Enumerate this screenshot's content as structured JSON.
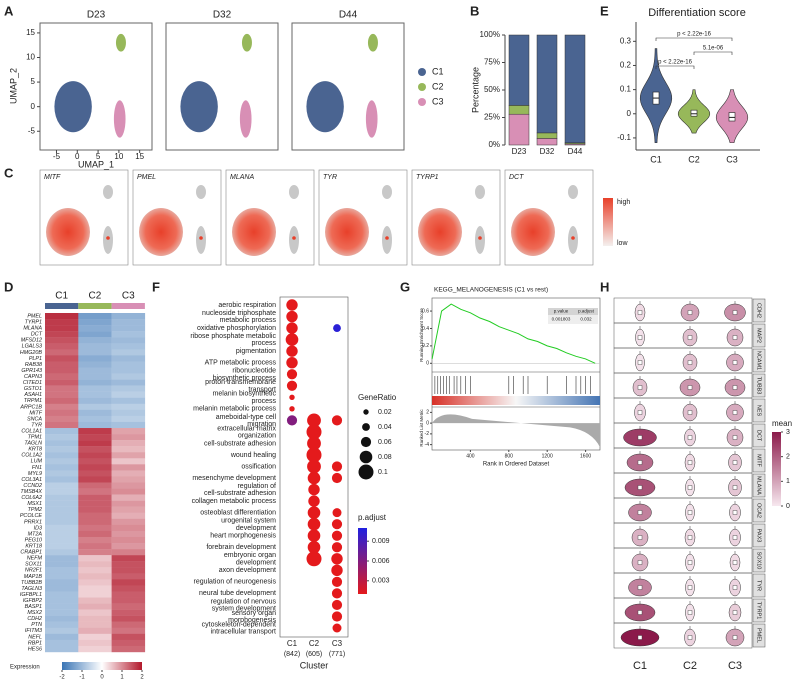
{
  "chart_data": [
    {
      "type": "umap",
      "label": "A",
      "facets": [
        "D23",
        "D32",
        "D44"
      ],
      "xlabel": "UMAP_1",
      "ylabel": "UMAP_2",
      "xlim": [
        -8,
        17
      ],
      "ylim": [
        -8,
        16
      ],
      "xticks": [
        -5,
        0,
        5,
        10,
        15
      ],
      "yticks": [
        -5,
        0,
        5,
        10,
        15
      ],
      "series": [
        {
          "name": "C1",
          "color": "#4a6491",
          "x": [
            -1
          ],
          "y": [
            0
          ]
        },
        {
          "name": "C2",
          "color": "#97b85a",
          "x": [
            10.5
          ],
          "y": [
            13
          ]
        },
        {
          "name": "C3",
          "color": "#d88fb5",
          "x": [
            10.2
          ],
          "y": [
            -2.5
          ]
        }
      ]
    },
    {
      "type": "stacked_bar",
      "label": "B",
      "categories": [
        "D23",
        "D32",
        "D44"
      ],
      "ylabel": "Percentage",
      "ylim": [
        0,
        100
      ],
      "yticks": [
        {
          "value": 0,
          "label": "0%"
        },
        {
          "value": 25,
          "label": "25%"
        },
        {
          "value": 50,
          "label": "50%"
        },
        {
          "value": 75,
          "label": "75%"
        },
        {
          "value": 100,
          "label": "100%"
        }
      ],
      "series": [
        {
          "name": "C3",
          "color": "#d88fb5",
          "values": [
            28,
            6,
            1
          ]
        },
        {
          "name": "C2",
          "color": "#97b85a",
          "values": [
            8,
            5,
            1
          ]
        },
        {
          "name": "C1",
          "color": "#4a6491",
          "values": [
            64,
            89,
            98
          ]
        }
      ]
    },
    {
      "type": "violin",
      "label": "E",
      "title": "Differentiation score",
      "categories": [
        "C1",
        "C2",
        "C3"
      ],
      "colors": [
        "#4a6491",
        "#97b85a",
        "#d88fb5"
      ],
      "ylim": [
        -0.15,
        0.38
      ],
      "yticks": [
        -0.1,
        0.0,
        0.1,
        0.2,
        0.3
      ],
      "min": [
        -0.12,
        -0.08,
        -0.12
      ],
      "q1": [
        0.04,
        -0.01,
        -0.03
      ],
      "median": [
        0.065,
        0.0,
        -0.015
      ],
      "q3": [
        0.09,
        0.015,
        0.005
      ],
      "max": [
        0.27,
        0.1,
        0.1
      ],
      "annotations": [
        "p < 2.22e-16",
        "5.1e-06",
        "p < 2.22e-16"
      ]
    },
    {
      "type": "feature_umap",
      "label": "C",
      "genes": [
        "MITF",
        "PMEL",
        "MLANA",
        "TYR",
        "TYRP1",
        "DCT"
      ],
      "legend": [
        "high",
        "low"
      ]
    },
    {
      "type": "heatmap",
      "label": "D",
      "clusters": [
        "C1",
        "C2",
        "C3"
      ],
      "cluster_colors": [
        "#4a6491",
        "#97b85a",
        "#d88fb5"
      ],
      "legend_title": "Expression",
      "ticks": [
        -2,
        -1,
        0,
        1,
        2
      ],
      "genes": [
        "PMEL",
        "TYRP1",
        "MLANA",
        "DCT",
        "MFSD12",
        "LGALS3",
        "HMG20B",
        "PLP1",
        "RAB38",
        "GPR143",
        "CAPN3",
        "CITED1",
        "GSTO1",
        "ASAH1",
        "TRPM1",
        "ARPC1B",
        "MITF",
        "SNCA",
        "TYR",
        "COL1A1",
        "TPM1",
        "TAGLN",
        "KRT8",
        "COL1A2",
        "LUM",
        "FN1",
        "MYL9",
        "COL3A1",
        "CCND2",
        "TMSB4X",
        "COL6A2",
        "MSX1",
        "TPM2",
        "PCOLCE",
        "PRRX1",
        "ID3",
        "MT2A",
        "PEG10",
        "KRT18",
        "CRABP1",
        "NEFM",
        "SOX11",
        "NR2F1",
        "MAP1B",
        "TUBB2B",
        "TAGLN3",
        "IGFBPL1",
        "IGFBP2",
        "BASP1",
        "MSX2",
        "CDH2",
        "PTN",
        "IFITM3",
        "NEFL",
        "RBP1",
        "HES6"
      ],
      "values": [
        [
          1.8,
          -1.4,
          -1.1
        ],
        [
          1.7,
          -1.3,
          -1.0
        ],
        [
          1.7,
          -1.2,
          -1.0
        ],
        [
          1.6,
          -1.3,
          -0.9
        ],
        [
          1.5,
          -1.1,
          -1.0
        ],
        [
          1.4,
          -1.0,
          -0.9
        ],
        [
          1.3,
          -1.0,
          -0.8
        ],
        [
          1.5,
          -1.2,
          -1.0
        ],
        [
          1.4,
          -1.1,
          -0.9
        ],
        [
          1.4,
          -1.0,
          -0.9
        ],
        [
          1.3,
          -1.0,
          -0.8
        ],
        [
          1.4,
          -1.1,
          -1.0
        ],
        [
          1.2,
          -0.9,
          -0.8
        ],
        [
          1.2,
          -0.9,
          -0.7
        ],
        [
          1.3,
          -1.0,
          -0.9
        ],
        [
          1.1,
          -0.8,
          -0.7
        ],
        [
          1.2,
          -1.0,
          -0.8
        ],
        [
          1.1,
          -0.9,
          -0.7
        ],
        [
          1.2,
          -1.0,
          -0.9
        ],
        [
          -0.9,
          1.7,
          0.8
        ],
        [
          -0.8,
          1.6,
          0.9
        ],
        [
          -0.9,
          1.7,
          0.7
        ],
        [
          -0.8,
          1.5,
          0.6
        ],
        [
          -0.9,
          1.6,
          0.8
        ],
        [
          -0.8,
          1.5,
          0.5
        ],
        [
          -0.9,
          1.6,
          0.9
        ],
        [
          -0.8,
          1.5,
          0.7
        ],
        [
          -0.9,
          1.6,
          0.8
        ],
        [
          -0.7,
          1.3,
          0.9
        ],
        [
          -0.7,
          1.2,
          1.0
        ],
        [
          -0.8,
          1.4,
          0.7
        ],
        [
          -0.8,
          1.4,
          0.9
        ],
        [
          -0.8,
          1.4,
          0.8
        ],
        [
          -0.8,
          1.3,
          0.7
        ],
        [
          -0.8,
          1.3,
          0.9
        ],
        [
          -0.7,
          1.2,
          1.0
        ],
        [
          -0.7,
          1.3,
          0.9
        ],
        [
          -0.7,
          1.1,
          1.0
        ],
        [
          -0.7,
          1.2,
          0.9
        ],
        [
          -0.8,
          1.1,
          1.1
        ],
        [
          -1.0,
          0.5,
          1.6
        ],
        [
          -1.0,
          0.6,
          1.5
        ],
        [
          -0.9,
          0.5,
          1.5
        ],
        [
          -0.9,
          0.6,
          1.4
        ],
        [
          -1.0,
          0.5,
          1.6
        ],
        [
          -1.0,
          0.4,
          1.5
        ],
        [
          -0.9,
          0.4,
          1.4
        ],
        [
          -0.9,
          0.6,
          1.4
        ],
        [
          -0.9,
          0.7,
          1.3
        ],
        [
          -0.9,
          0.5,
          1.4
        ],
        [
          -1.0,
          0.6,
          1.5
        ],
        [
          -0.9,
          0.6,
          1.3
        ],
        [
          -0.8,
          0.7,
          1.2
        ],
        [
          -1.0,
          0.4,
          1.5
        ],
        [
          -0.9,
          0.5,
          1.4
        ],
        [
          -0.9,
          0.4,
          1.3
        ]
      ]
    },
    {
      "type": "dot",
      "label": "F",
      "xlabel": "Cluster",
      "categories": [
        "C1",
        "C2",
        "C3"
      ],
      "counts": [
        "(842)",
        "(605)",
        "(771)"
      ],
      "terms": [
        "aerobic respiration",
        "nucleoside triphosphate metabolic process",
        "oxidative phosphorylation",
        "ribose phosphate metabolic process",
        "pigmentation",
        "ATP metabolic process",
        "ribonucleotide biosynthetic process",
        "proton transmembrane transport",
        "melanin biosynthetic process",
        "melanin metabolic process",
        "ameboidal-type cell migration",
        "extracellular matrix organization",
        "cell-substrate adhesion",
        "wound healing",
        "ossification",
        "mesenchyme development",
        "regulation of cell-substrate adhesion",
        "collagen metabolic process",
        "osteoblast differentiation",
        "urogenital system development",
        "heart morphogenesis",
        "forebrain development",
        "embryonic organ development",
        "axon development",
        "regulation of neurogenesis",
        "neural tube development",
        "regulation of nervous system development",
        "sensory organ morphogenesis",
        "cytoskeleton-dependent intracellular transport"
      ],
      "size_title": "GeneRatio",
      "size_ticks": [
        0.02,
        0.04,
        0.06,
        0.08,
        0.1
      ],
      "color_title": "p.adjust",
      "color_lim": [
        0.001,
        0.011
      ],
      "color_ticks": [
        0.009,
        0.006,
        0.003
      ],
      "series": [
        {
          "name": "C1",
          "gene_ratio": [
            0.07,
            0.07,
            0.07,
            0.08,
            0.07,
            0.07,
            0.06,
            0.06,
            0.02,
            0.02,
            0.06,
            null,
            null,
            null,
            null,
            null,
            null,
            null,
            null,
            null,
            null,
            null,
            null,
            null,
            null,
            null,
            null,
            null,
            null
          ],
          "p_adjust": [
            0.001,
            0.001,
            0.001,
            0.001,
            0.001,
            0.001,
            0.001,
            0.001,
            0.001,
            0.001,
            0.006,
            null,
            null,
            null,
            null,
            null,
            null,
            null,
            null,
            null,
            null,
            null,
            null,
            null,
            null,
            null,
            null,
            null,
            null
          ]
        },
        {
          "name": "C2",
          "gene_ratio": [
            null,
            null,
            null,
            null,
            null,
            null,
            null,
            null,
            null,
            null,
            0.09,
            0.1,
            0.09,
            0.1,
            0.09,
            0.08,
            0.07,
            0.07,
            0.08,
            0.08,
            0.08,
            0.08,
            0.1,
            null,
            null,
            null,
            null,
            null,
            null
          ],
          "p_adjust": [
            null,
            null,
            null,
            null,
            null,
            null,
            null,
            null,
            null,
            null,
            0.001,
            0.001,
            0.001,
            0.001,
            0.001,
            0.001,
            0.001,
            0.001,
            0.001,
            0.001,
            0.001,
            0.001,
            0.001,
            null,
            null,
            null,
            null,
            null,
            null
          ]
        },
        {
          "name": "C3",
          "gene_ratio": [
            null,
            null,
            0.04,
            null,
            null,
            null,
            null,
            null,
            null,
            null,
            0.06,
            null,
            null,
            null,
            0.06,
            0.06,
            null,
            null,
            0.05,
            0.06,
            0.06,
            0.06,
            0.07,
            0.07,
            0.06,
            0.06,
            0.06,
            0.06,
            0.05
          ],
          "p_adjust": [
            null,
            null,
            0.0105,
            null,
            null,
            null,
            null,
            null,
            null,
            null,
            0.001,
            null,
            null,
            null,
            0.001,
            0.001,
            null,
            null,
            0.001,
            0.001,
            0.001,
            0.001,
            0.001,
            0.001,
            0.001,
            0.001,
            0.001,
            0.001,
            0.001
          ]
        }
      ]
    },
    {
      "type": "gsea",
      "label": "G",
      "title": "KEGG_MELANOGENESIS (C1 vs rest)",
      "ylabel": "Running Enrichment Score",
      "ylabel2": "Ranked List Metric",
      "xlabel": "Rank in Ordered Dataset",
      "xlim": [
        0,
        1750
      ],
      "xticks": [
        400,
        800,
        1200,
        1600
      ],
      "ylim": [
        -0.1,
        0.75
      ],
      "yticks": [
        0,
        0.2,
        0.4,
        0.6
      ],
      "y2lim": [
        -5,
        3
      ],
      "y2ticks": [
        -4,
        -2,
        0,
        2
      ],
      "x": [
        1,
        100,
        200,
        300,
        400,
        500,
        600,
        700,
        800,
        900,
        1000,
        1100,
        1200,
        1300,
        1400,
        1500,
        1600,
        1700
      ],
      "y": [
        0.05,
        0.6,
        0.68,
        0.62,
        0.58,
        0.52,
        0.48,
        0.42,
        0.38,
        0.34,
        0.28,
        0.25,
        0.2,
        0.17,
        0.12,
        0.08,
        0.05,
        0.0
      ],
      "hits": [
        30,
        60,
        90,
        120,
        150,
        180,
        230,
        260,
        300,
        350,
        400,
        800,
        850,
        950,
        1000,
        1200,
        1400,
        1500,
        1550,
        1600,
        1650
      ],
      "table_header": [
        "p.value",
        "p.adjust"
      ],
      "table_values": [
        "0.001803",
        "0.032"
      ]
    },
    {
      "type": "stacked_violin",
      "label": "H",
      "categories": [
        "C1",
        "C2",
        "C3"
      ],
      "legend_title": "mean",
      "legend_lim": [
        0,
        3
      ],
      "legend_ticks": [
        0,
        1,
        2,
        3
      ],
      "genes": [
        "CDH2",
        "MAP2",
        "NCAM1",
        "TUBB3",
        "NES",
        "DCT",
        "MITF",
        "MLANA",
        "OCA2",
        "PAX3",
        "SOX10",
        "TYR",
        "TYRP1",
        "PMEL"
      ],
      "values": [
        [
          0.2,
          1.0,
          1.3
        ],
        [
          0.1,
          0.6,
          0.8
        ],
        [
          0.1,
          0.6,
          0.9
        ],
        [
          0.6,
          1.2,
          1.2
        ],
        [
          0.3,
          0.6,
          0.9
        ],
        [
          2.5,
          0.3,
          0.8
        ],
        [
          1.8,
          0.2,
          0.5
        ],
        [
          2.2,
          0.1,
          0.5
        ],
        [
          1.5,
          0.1,
          0.3
        ],
        [
          0.8,
          0.2,
          0.3
        ],
        [
          0.8,
          0.1,
          0.2
        ],
        [
          1.5,
          0.1,
          0.3
        ],
        [
          2.2,
          0.1,
          0.4
        ],
        [
          3.0,
          0.3,
          1.0
        ]
      ]
    }
  ]
}
